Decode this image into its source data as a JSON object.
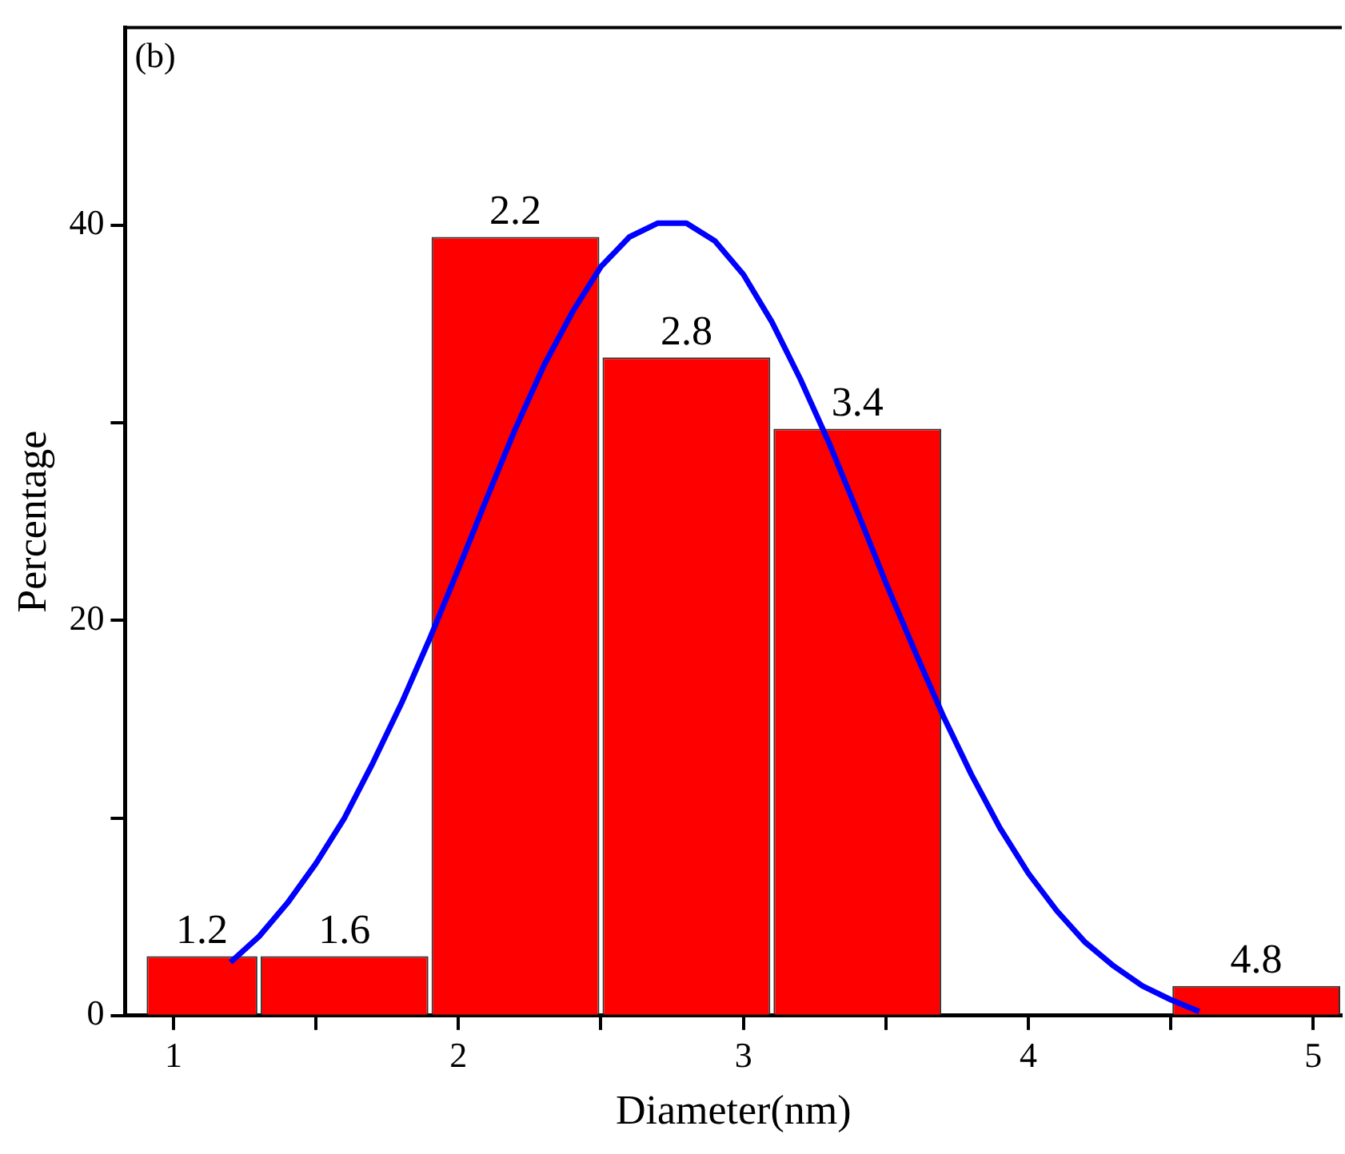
{
  "chart_data": {
    "type": "histogram",
    "xlabel": "Diameter(nm)",
    "ylabel": "Percentage",
    "annotations": [
      "(b)",
      {
        "text": "1.2",
        "x": 1.1,
        "y": 3
      },
      {
        "text": "1.6",
        "x": 1.6,
        "y": 3
      },
      {
        "text": "2.2",
        "x": 2.2,
        "y": 39.4
      },
      {
        "text": "2.8",
        "x": 2.8,
        "y": 33.3
      },
      {
        "text": "3.4",
        "x": 3.4,
        "y": 29.7
      },
      {
        "text": "4.8",
        "x": 4.8,
        "y": 1.5
      }
    ],
    "bins": [
      0.9,
      1.3,
      1.9,
      2.5,
      3.1,
      3.7,
      4.5,
      5.1
    ],
    "series": [
      {
        "color": "#ff0000",
        "values": [
          3,
          3,
          39.4,
          33.3,
          29.7,
          0,
          1.5
        ]
      },
      {
        "type": "line",
        "color": "#0000ff",
        "x": [
          1.2,
          1.3,
          1.4,
          1.5,
          1.6,
          1.7,
          1.8,
          1.9,
          2.0,
          2.1,
          2.2,
          2.3,
          2.4,
          2.5,
          2.6,
          2.7,
          2.8,
          2.9,
          3.0,
          3.1,
          3.2,
          3.3,
          3.4,
          3.5,
          3.6,
          3.7,
          3.8,
          3.9,
          4.0,
          4.1,
          4.2,
          4.3,
          4.4,
          4.5,
          4.6
        ],
        "values": [
          2.7,
          4.0,
          5.7,
          7.7,
          10.0,
          12.8,
          15.8,
          19.1,
          22.6,
          26.2,
          29.7,
          32.9,
          35.6,
          37.9,
          39.4,
          40.1,
          40.1,
          39.2,
          37.5,
          35.1,
          32.2,
          29.0,
          25.5,
          21.9,
          18.5,
          15.2,
          12.2,
          9.5,
          7.2,
          5.3,
          3.7,
          2.5,
          1.5,
          0.8,
          0.2
        ]
      }
    ],
    "xlim": [
      0.83,
      5.1
    ],
    "xticks": [
      1,
      {
        "value": 1.5,
        "label": null
      },
      2,
      {
        "value": 2.5,
        "label": null
      },
      3,
      {
        "value": 3.5,
        "label": null
      },
      4,
      {
        "value": 4.5,
        "label": null
      },
      5
    ],
    "ylim": [
      0,
      50
    ],
    "yticks": [
      0,
      {
        "value": 10,
        "label": null
      },
      20,
      {
        "value": 30,
        "label": null
      },
      40
    ]
  }
}
